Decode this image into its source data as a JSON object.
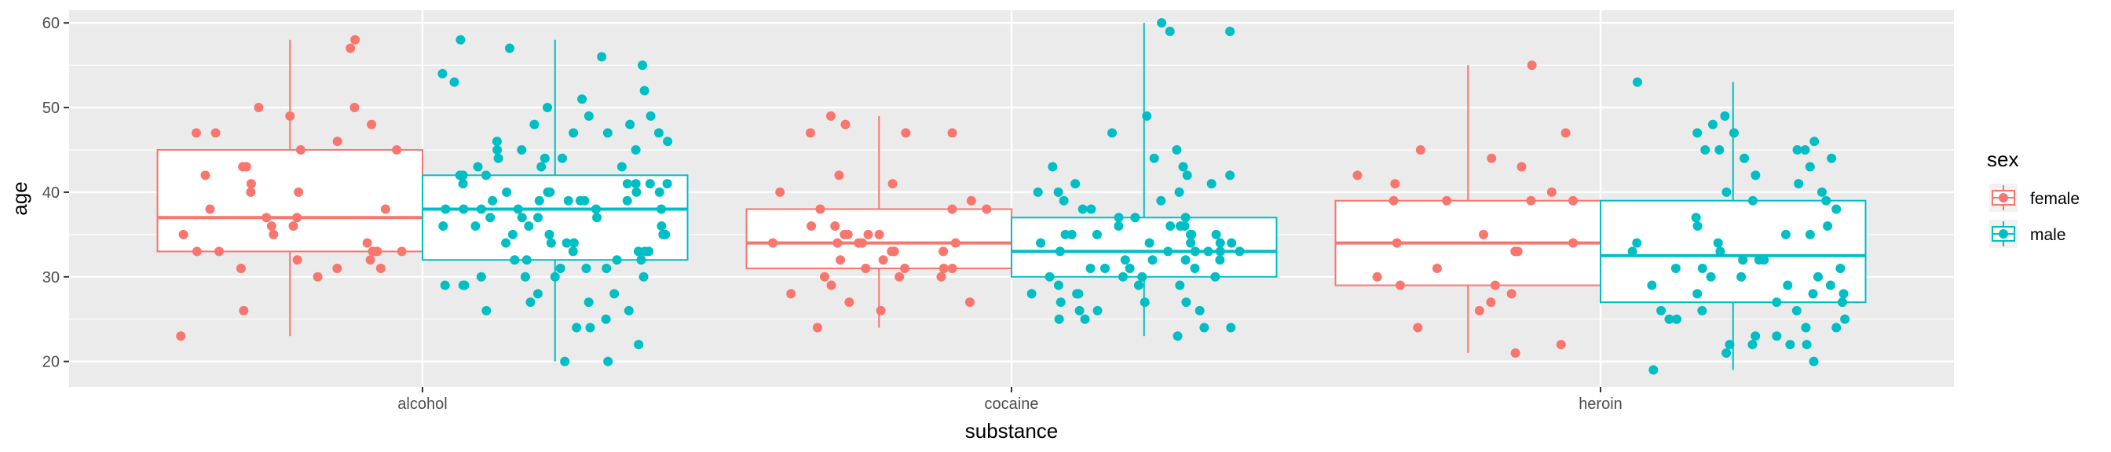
{
  "chart_data": {
    "type": "boxplot",
    "xlabel": "substance",
    "ylabel": "age",
    "ylim": [
      17,
      61.5
    ],
    "yticks": [
      20,
      30,
      40,
      50,
      60
    ],
    "ytick_labels": [
      "20",
      "30",
      "40",
      "50",
      "60"
    ],
    "categories": [
      "alcohol",
      "cocaine",
      "heroin"
    ],
    "grid": true,
    "legend": {
      "title": "sex",
      "position": "right",
      "entries": [
        "female",
        "male"
      ]
    },
    "colors": {
      "female": "#F8766D",
      "male": "#00BFC4",
      "panel": "#EBEBEB",
      "grid": "#FFFFFF"
    },
    "series": [
      {
        "name": "female",
        "boxes": [
          {
            "category": "alcohol",
            "min": 23,
            "q1": 33,
            "median": 37,
            "q3": 45,
            "max": 58
          },
          {
            "category": "cocaine",
            "min": 24,
            "q1": 31,
            "median": 34,
            "q3": 38,
            "max": 49
          },
          {
            "category": "heroin",
            "min": 21,
            "q1": 29,
            "median": 34,
            "q3": 39,
            "max": 55
          }
        ],
        "points": {
          "alcohol": [
            58,
            57,
            50,
            50,
            49,
            48,
            47,
            47,
            46,
            45,
            45,
            43,
            43,
            42,
            41,
            40,
            40,
            38,
            38,
            37,
            37,
            36,
            36,
            35,
            35,
            34,
            33,
            33,
            33,
            33,
            33,
            32,
            32,
            31,
            31,
            31,
            30,
            26,
            23
          ],
          "cocaine": [
            49,
            48,
            47,
            47,
            47,
            42,
            41,
            40,
            39,
            38,
            38,
            38,
            36,
            36,
            35,
            35,
            35,
            35,
            34,
            34,
            34,
            34,
            34,
            33,
            33,
            33,
            32,
            32,
            31,
            31,
            31,
            31,
            30,
            30,
            30,
            29,
            28,
            27,
            27,
            26,
            24
          ],
          "heroin": [
            55,
            47,
            45,
            44,
            43,
            42,
            41,
            40,
            39,
            39,
            39,
            39,
            35,
            34,
            34,
            33,
            33,
            31,
            30,
            29,
            29,
            28,
            27,
            26,
            24,
            22,
            21
          ]
        }
      },
      {
        "name": "male",
        "boxes": [
          {
            "category": "alcohol",
            "min": 20,
            "q1": 32,
            "median": 38,
            "q3": 42,
            "max": 58
          },
          {
            "category": "cocaine",
            "min": 23,
            "q1": 30,
            "median": 33,
            "q3": 37,
            "max": 60
          },
          {
            "category": "heroin",
            "min": 19,
            "q1": 27,
            "median": 32.5,
            "q3": 39,
            "max": 53
          }
        ],
        "points": {
          "alcohol": [
            58,
            57,
            56,
            55,
            54,
            53,
            52,
            51,
            50,
            49,
            49,
            48,
            48,
            47,
            47,
            47,
            46,
            46,
            45,
            45,
            45,
            44,
            44,
            44,
            43,
            43,
            43,
            42,
            42,
            42,
            41,
            41,
            41,
            41,
            41,
            40,
            40,
            40,
            40,
            40,
            39,
            39,
            39,
            39,
            39,
            39,
            38,
            38,
            38,
            38,
            38,
            38,
            37,
            37,
            37,
            37,
            36,
            36,
            36,
            36,
            35,
            35,
            35,
            35,
            34,
            34,
            34,
            34,
            33,
            33,
            33,
            33,
            32,
            32,
            32,
            32,
            31,
            31,
            31,
            30,
            30,
            30,
            30,
            29,
            29,
            29,
            28,
            28,
            27,
            27,
            26,
            26,
            25,
            24,
            24,
            22,
            20,
            20
          ],
          "cocaine": [
            60,
            59,
            59,
            49,
            47,
            45,
            44,
            43,
            43,
            42,
            42,
            41,
            41,
            40,
            40,
            40,
            39,
            39,
            38,
            38,
            37,
            37,
            37,
            36,
            36,
            36,
            36,
            35,
            35,
            35,
            35,
            35,
            35,
            34,
            34,
            34,
            34,
            34,
            33,
            33,
            33,
            33,
            33,
            33,
            32,
            32,
            32,
            32,
            31,
            31,
            31,
            31,
            30,
            30,
            30,
            30,
            29,
            29,
            29,
            28,
            28,
            28,
            27,
            27,
            27,
            26,
            26,
            26,
            25,
            25,
            24,
            24,
            23
          ],
          "heroin": [
            53,
            49,
            48,
            47,
            47,
            46,
            45,
            45,
            45,
            45,
            44,
            44,
            43,
            42,
            41,
            40,
            40,
            39,
            39,
            38,
            37,
            36,
            36,
            35,
            35,
            34,
            34,
            33,
            33,
            32,
            32,
            32,
            31,
            31,
            31,
            30,
            30,
            30,
            29,
            29,
            29,
            28,
            28,
            28,
            27,
            27,
            26,
            26,
            26,
            25,
            25,
            25,
            24,
            24,
            23,
            23,
            22,
            22,
            22,
            22,
            21,
            20,
            19
          ]
        }
      }
    ]
  }
}
